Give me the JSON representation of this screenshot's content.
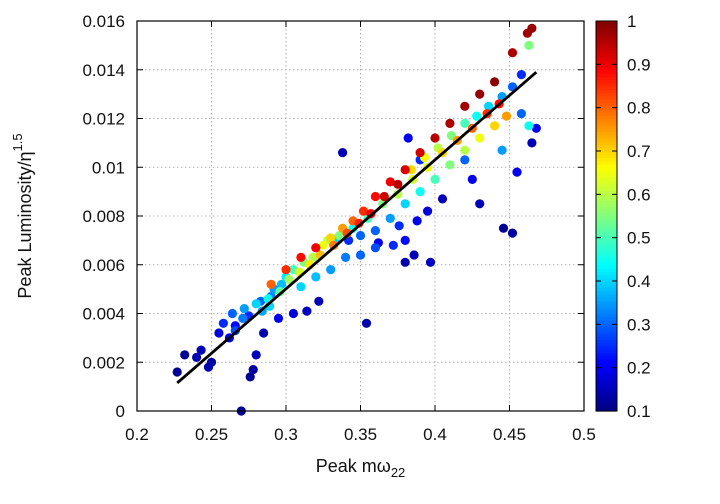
{
  "chart_data": {
    "type": "scatter",
    "title": "",
    "xlabel": {
      "main": "Peak m",
      "greek": "ω",
      "sub": "22"
    },
    "ylabel": {
      "main": "Peak Luminosity/",
      "greek": "η",
      "sup": "1.5"
    },
    "xlim": [
      0.2,
      0.5
    ],
    "ylim": [
      0,
      0.016
    ],
    "x_ticks": [
      0.2,
      0.25,
      0.3,
      0.35,
      0.4,
      0.45,
      0.5
    ],
    "x_tick_labels": [
      "0.2",
      "0.25",
      "0.3",
      "0.35",
      "0.4",
      "0.45",
      "0.5"
    ],
    "y_ticks": [
      0,
      0.002,
      0.004,
      0.006,
      0.008,
      0.01,
      0.012,
      0.014,
      0.016
    ],
    "y_tick_labels": [
      "0",
      "0.002",
      "0.004",
      "0.006",
      "0.008",
      "0.01",
      "0.012",
      "0.014",
      "0.016"
    ],
    "grid": true,
    "colorbar": {
      "range": [
        0.1,
        1.0
      ],
      "ticks": [
        0.1,
        0.2,
        0.3,
        0.4,
        0.5,
        0.6,
        0.7,
        0.8,
        0.9,
        1.0
      ],
      "tick_labels": [
        "0.1",
        "0.2",
        "0.3",
        "0.4",
        "0.5",
        "0.6",
        "0.7",
        "0.8",
        "0.9",
        "1"
      ],
      "colormap": "jet"
    },
    "fit_line": {
      "x": [
        0.227,
        0.468
      ],
      "y": [
        0.00115,
        0.0139
      ],
      "color": "#000000"
    },
    "points": [
      [
        0.27,
        0.0,
        0.12
      ],
      [
        0.24,
        0.0022,
        0.14
      ],
      [
        0.232,
        0.0023,
        0.12
      ],
      [
        0.243,
        0.0025,
        0.15
      ],
      [
        0.255,
        0.0032,
        0.18
      ],
      [
        0.262,
        0.003,
        0.2
      ],
      [
        0.266,
        0.0035,
        0.22
      ],
      [
        0.275,
        0.0039,
        0.25
      ],
      [
        0.283,
        0.0045,
        0.3
      ],
      [
        0.29,
        0.0047,
        0.33
      ],
      [
        0.292,
        0.005,
        0.35
      ],
      [
        0.297,
        0.0052,
        0.38
      ],
      [
        0.3,
        0.0055,
        0.42
      ],
      [
        0.305,
        0.0058,
        0.5
      ],
      [
        0.312,
        0.0061,
        0.55
      ],
      [
        0.318,
        0.0063,
        0.6
      ],
      [
        0.325,
        0.0068,
        0.65
      ],
      [
        0.33,
        0.0071,
        0.7
      ],
      [
        0.338,
        0.0075,
        0.75
      ],
      [
        0.345,
        0.0078,
        0.8
      ],
      [
        0.352,
        0.0082,
        0.85
      ],
      [
        0.36,
        0.0088,
        0.88
      ],
      [
        0.37,
        0.0094,
        0.9
      ],
      [
        0.38,
        0.0099,
        0.92
      ],
      [
        0.39,
        0.0106,
        0.93
      ],
      [
        0.4,
        0.0112,
        0.95
      ],
      [
        0.41,
        0.0118,
        0.96
      ],
      [
        0.42,
        0.0125,
        0.97
      ],
      [
        0.43,
        0.013,
        0.98
      ],
      [
        0.44,
        0.0135,
        0.99
      ],
      [
        0.452,
        0.0147,
        0.96
      ],
      [
        0.462,
        0.0155,
        0.97
      ],
      [
        0.465,
        0.0157,
        0.98
      ],
      [
        0.463,
        0.015,
        0.55
      ],
      [
        0.458,
        0.0122,
        0.3
      ],
      [
        0.468,
        0.0116,
        0.2
      ],
      [
        0.465,
        0.011,
        0.15
      ],
      [
        0.446,
        0.0075,
        0.12
      ],
      [
        0.452,
        0.0073,
        0.13
      ],
      [
        0.405,
        0.0087,
        0.15
      ],
      [
        0.395,
        0.0082,
        0.18
      ],
      [
        0.388,
        0.0078,
        0.2
      ],
      [
        0.38,
        0.007,
        0.22
      ],
      [
        0.372,
        0.0068,
        0.25
      ],
      [
        0.36,
        0.0067,
        0.28
      ],
      [
        0.35,
        0.0064,
        0.3
      ],
      [
        0.34,
        0.0063,
        0.32
      ],
      [
        0.33,
        0.0058,
        0.35
      ],
      [
        0.32,
        0.0055,
        0.38
      ],
      [
        0.31,
        0.0051,
        0.4
      ],
      [
        0.386,
        0.0064,
        0.15
      ],
      [
        0.38,
        0.0061,
        0.14
      ],
      [
        0.397,
        0.0061,
        0.16
      ],
      [
        0.322,
        0.0045,
        0.15
      ],
      [
        0.314,
        0.0041,
        0.16
      ],
      [
        0.305,
        0.004,
        0.18
      ],
      [
        0.295,
        0.0038,
        0.2
      ],
      [
        0.354,
        0.0036,
        0.14
      ],
      [
        0.338,
        0.0106,
        0.15
      ],
      [
        0.382,
        0.0112,
        0.2
      ],
      [
        0.39,
        0.0103,
        0.25
      ],
      [
        0.42,
        0.0103,
        0.3
      ],
      [
        0.425,
        0.0095,
        0.2
      ],
      [
        0.43,
        0.0085,
        0.15
      ],
      [
        0.455,
        0.0098,
        0.2
      ],
      [
        0.445,
        0.0107,
        0.35
      ],
      [
        0.463,
        0.0117,
        0.45
      ],
      [
        0.28,
        0.0023,
        0.15
      ],
      [
        0.278,
        0.0017,
        0.13
      ],
      [
        0.276,
        0.0014,
        0.12
      ],
      [
        0.285,
        0.0032,
        0.14
      ],
      [
        0.25,
        0.002,
        0.13
      ],
      [
        0.227,
        0.0016,
        0.12
      ],
      [
        0.248,
        0.0018,
        0.14
      ],
      [
        0.258,
        0.0036,
        0.25
      ],
      [
        0.264,
        0.004,
        0.3
      ],
      [
        0.272,
        0.0042,
        0.35
      ],
      [
        0.28,
        0.0044,
        0.4
      ],
      [
        0.288,
        0.0046,
        0.45
      ],
      [
        0.296,
        0.0049,
        0.52
      ],
      [
        0.302,
        0.0054,
        0.58
      ],
      [
        0.309,
        0.0057,
        0.63
      ],
      [
        0.316,
        0.006,
        0.68
      ],
      [
        0.323,
        0.0064,
        0.72
      ],
      [
        0.332,
        0.0068,
        0.78
      ],
      [
        0.341,
        0.0073,
        0.82
      ],
      [
        0.349,
        0.0077,
        0.86
      ],
      [
        0.357,
        0.0081,
        0.9
      ],
      [
        0.366,
        0.0088,
        0.93
      ],
      [
        0.375,
        0.0093,
        0.95
      ],
      [
        0.384,
        0.0099,
        0.7
      ],
      [
        0.393,
        0.0104,
        0.65
      ],
      [
        0.402,
        0.0108,
        0.6
      ],
      [
        0.411,
        0.0113,
        0.55
      ],
      [
        0.42,
        0.0118,
        0.5
      ],
      [
        0.428,
        0.0121,
        0.45
      ],
      [
        0.436,
        0.0125,
        0.4
      ],
      [
        0.445,
        0.0129,
        0.35
      ],
      [
        0.452,
        0.0133,
        0.3
      ],
      [
        0.458,
        0.0138,
        0.25
      ],
      [
        0.335,
        0.0071,
        0.4
      ],
      [
        0.345,
        0.0075,
        0.45
      ],
      [
        0.355,
        0.0079,
        0.5
      ],
      [
        0.365,
        0.0085,
        0.55
      ],
      [
        0.375,
        0.0089,
        0.6
      ],
      [
        0.385,
        0.0095,
        0.62
      ],
      [
        0.395,
        0.01,
        0.65
      ],
      [
        0.405,
        0.0106,
        0.7
      ],
      [
        0.415,
        0.0111,
        0.75
      ],
      [
        0.425,
        0.0116,
        0.8
      ],
      [
        0.435,
        0.0122,
        0.85
      ],
      [
        0.443,
        0.0126,
        0.88
      ],
      [
        0.36,
        0.0074,
        0.3
      ],
      [
        0.37,
        0.0079,
        0.35
      ],
      [
        0.38,
        0.0085,
        0.4
      ],
      [
        0.39,
        0.009,
        0.45
      ],
      [
        0.4,
        0.0095,
        0.5
      ],
      [
        0.41,
        0.0101,
        0.55
      ],
      [
        0.42,
        0.0107,
        0.6
      ],
      [
        0.43,
        0.0112,
        0.65
      ],
      [
        0.44,
        0.0117,
        0.7
      ],
      [
        0.448,
        0.0121,
        0.75
      ],
      [
        0.29,
        0.0052,
        0.8
      ],
      [
        0.3,
        0.0058,
        0.85
      ],
      [
        0.31,
        0.0063,
        0.88
      ],
      [
        0.32,
        0.0067,
        0.9
      ],
      [
        0.328,
        0.007,
        0.6
      ],
      [
        0.336,
        0.0072,
        0.55
      ],
      [
        0.342,
        0.007,
        0.25
      ],
      [
        0.35,
        0.0072,
        0.3
      ],
      [
        0.362,
        0.0069,
        0.2
      ],
      [
        0.376,
        0.0076,
        0.25
      ],
      [
        0.266,
        0.0033,
        0.28
      ],
      [
        0.271,
        0.0038,
        0.32
      ],
      [
        0.284,
        0.0041,
        0.36
      ],
      [
        0.289,
        0.0043,
        0.4
      ]
    ]
  }
}
